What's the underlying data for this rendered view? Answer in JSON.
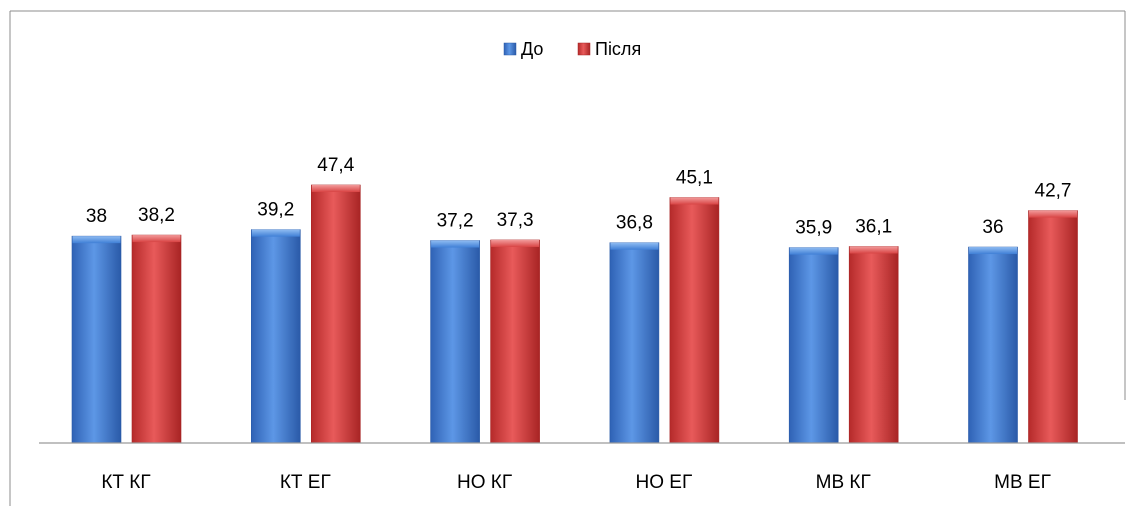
{
  "chart_data": {
    "type": "bar",
    "title": "",
    "xlabel": "",
    "ylabel": "",
    "categories": [
      "КТ КГ",
      "КТ ЕГ",
      "НО КГ",
      "НО ЕГ",
      "МВ КГ",
      "МВ ЕГ"
    ],
    "series": [
      {
        "name": "До",
        "values": [
          38,
          39.2,
          37.2,
          36.8,
          35.9,
          36
        ],
        "labels": [
          "38",
          "39,2",
          "37,2",
          "36,8",
          "35,9",
          "36"
        ],
        "color": "#3a78d0"
      },
      {
        "name": "Після",
        "values": [
          38.2,
          47.4,
          37.3,
          45.1,
          36.1,
          42.7
        ],
        "labels": [
          "38,2",
          "47,4",
          "37,3",
          "45,1",
          "36,1",
          "42,7"
        ],
        "color": "#d23a3a"
      }
    ],
    "ylim": [
      0,
      55
    ],
    "grid": false,
    "legend": "top-center"
  }
}
